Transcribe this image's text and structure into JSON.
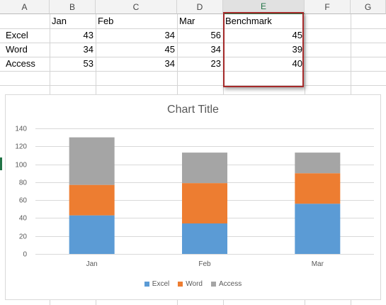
{
  "columns": [
    "A",
    "B",
    "C",
    "D",
    "E",
    "F",
    "G"
  ],
  "rows": [
    [
      "",
      "Jan",
      "Feb",
      "Mar",
      "Benchmark"
    ],
    [
      "Excel",
      "43",
      "34",
      "56",
      "45"
    ],
    [
      "Word",
      "34",
      "45",
      "34",
      "39"
    ],
    [
      "Access",
      "53",
      "34",
      "23",
      "40"
    ]
  ],
  "colors": {
    "Excel": "#5b9bd5",
    "Word": "#ed7d31",
    "Access": "#a5a5a5",
    "highlight": "#a52a2a"
  },
  "chart_data": {
    "type": "bar",
    "stacked": true,
    "title": "Chart Title",
    "categories": [
      "Jan",
      "Feb",
      "Mar"
    ],
    "series": [
      {
        "name": "Excel",
        "values": [
          43,
          34,
          56
        ]
      },
      {
        "name": "Word",
        "values": [
          34,
          45,
          34
        ]
      },
      {
        "name": "Access",
        "values": [
          53,
          34,
          23
        ]
      }
    ],
    "ylim": [
      0,
      140
    ],
    "yticks": [
      0,
      20,
      40,
      60,
      80,
      100,
      120,
      140
    ],
    "grid": true,
    "legend": "bottom"
  }
}
